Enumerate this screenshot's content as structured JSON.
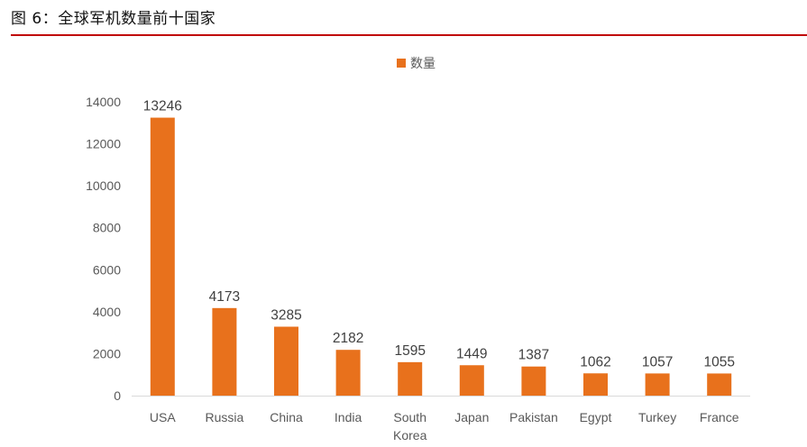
{
  "figure": {
    "title": "图 6：全球军机数量前十国家"
  },
  "colors": {
    "bar": "#e8711c",
    "rule": "#c00000",
    "axis": "#d9d9d9"
  },
  "chart_data": {
    "type": "bar",
    "title": "",
    "xlabel": "",
    "ylabel": "",
    "categories": [
      "USA",
      "Russia",
      "China",
      "India",
      "South Korea",
      "Japan",
      "Pakistan",
      "Egypt",
      "Turkey",
      "France"
    ],
    "category_lines": [
      [
        "USA"
      ],
      [
        "Russia"
      ],
      [
        "China"
      ],
      [
        "India"
      ],
      [
        "South",
        "Korea"
      ],
      [
        "Japan"
      ],
      [
        "Pakistan"
      ],
      [
        "Egypt"
      ],
      [
        "Turkey"
      ],
      [
        "France"
      ]
    ],
    "series": [
      {
        "name": "数量",
        "values": [
          13246,
          4173,
          3285,
          2182,
          1595,
          1449,
          1387,
          1062,
          1057,
          1055
        ]
      }
    ],
    "ylim": [
      0,
      14000
    ],
    "yticks": [
      0,
      2000,
      4000,
      6000,
      8000,
      10000,
      12000,
      14000
    ],
    "legend_position": "top-center",
    "data_labels": true,
    "grid": false
  }
}
